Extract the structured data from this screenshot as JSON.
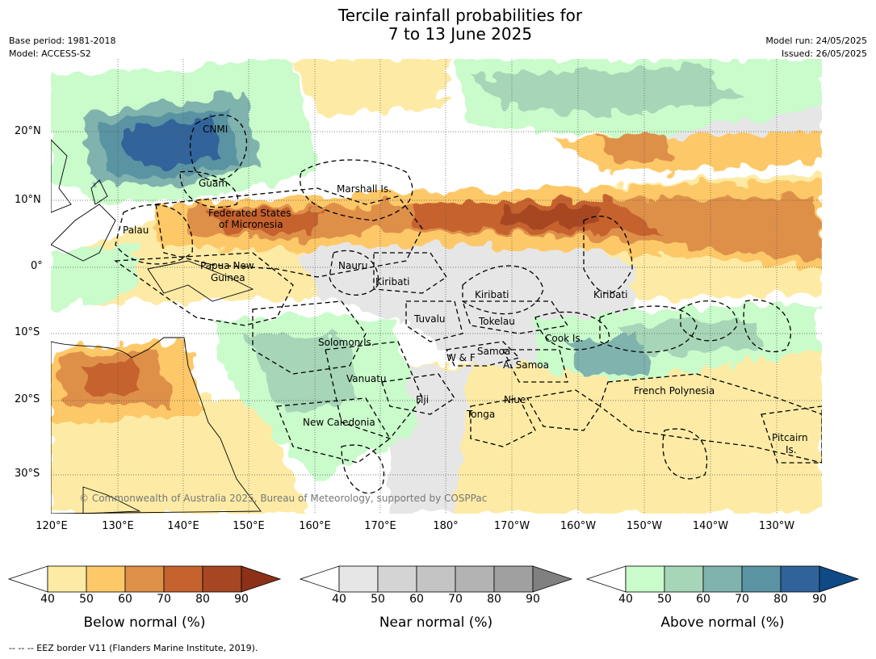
{
  "title_line1": "Tercile rainfall probabilities for",
  "title_line2": "7 to 13 June 2025",
  "base_period": "Base period: 1981-2018",
  "model": "Model: ACCESS-S2",
  "model_run": "Model run: 24/05/2025",
  "issued": "Issued: 26/05/2025",
  "copyright": "© Commonwealth of Australia 2025, Bureau of Meteorology, supported by COSPPac",
  "footer": "--  --  -- EEZ border V11 (Flanders Marine Institute, 2019).",
  "lat_ticks": [
    "20°N",
    "10°N",
    "0°",
    "10°S",
    "20°S",
    "30°S"
  ],
  "lon_ticks": [
    "120°E",
    "130°E",
    "140°E",
    "150°E",
    "160°E",
    "170°E",
    "180°",
    "170°W",
    "160°W",
    "150°W",
    "140°W",
    "130°W"
  ],
  "places": [
    "CNMI",
    "Guam",
    "Marshall Is.",
    "Federated States",
    "of Micronesia",
    "Palau",
    "Papua New",
    "Guinea",
    "Nauru",
    "Kiribati",
    "Kiribati",
    "Kiribati",
    "Tuvalu",
    "Tokelau",
    "Cook Is.",
    "Solomon Is.",
    "W & F",
    "Samoa",
    "A. Samoa",
    "Vanuatu",
    "Fiji",
    "Niue",
    "French Polynesia",
    "Tonga",
    "New Caledonia",
    "Pitcairn",
    "Is."
  ],
  "colorbars": [
    {
      "title": "Below normal (%)",
      "labels": [
        "40",
        "50",
        "60",
        "70",
        "80",
        "90"
      ],
      "colors": [
        "#ffffff",
        "#fdeba5",
        "#fdc867",
        "#de9048",
        "#c6622e",
        "#a74622",
        "#8c3018"
      ]
    },
    {
      "title": "Near normal (%)",
      "labels": [
        "40",
        "50",
        "60",
        "70",
        "80",
        "90"
      ],
      "colors": [
        "#ffffff",
        "#e6e6e6",
        "#d4d4d4",
        "#c4c4c4",
        "#b3b3b3",
        "#a0a0a0",
        "#808080"
      ]
    },
    {
      "title": "Above normal (%)",
      "labels": [
        "40",
        "50",
        "60",
        "70",
        "80",
        "90"
      ],
      "colors": [
        "#ffffff",
        "#c9fbcb",
        "#a6d6b7",
        "#80b3ad",
        "#5a93a2",
        "#30639a",
        "#0f4a87"
      ]
    }
  ]
}
